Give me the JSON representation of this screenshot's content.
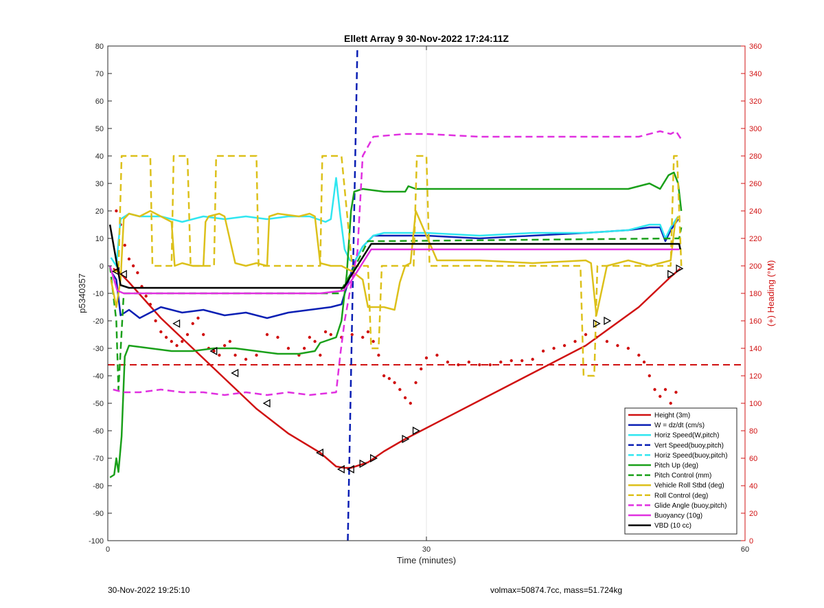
{
  "chart_data": {
    "type": "line",
    "title": "Ellett Array 9 30-Nov-2022 17:24:11Z",
    "xlabel": "Time (minutes)",
    "ylabel": "p5340357",
    "y2label": "(+) Heading (°M)",
    "xlim": [
      0,
      60
    ],
    "ylim": [
      -100,
      80
    ],
    "y2lim": [
      0,
      360
    ],
    "x_ticks": [
      0,
      30,
      60
    ],
    "y_ticks": [
      -100,
      -90,
      -80,
      -70,
      -60,
      -50,
      -40,
      -30,
      -20,
      -10,
      0,
      10,
      20,
      30,
      40,
      50,
      60,
      70,
      80
    ],
    "y2_ticks": [
      0,
      20,
      40,
      60,
      80,
      100,
      120,
      140,
      160,
      180,
      200,
      220,
      240,
      260,
      280,
      300,
      320,
      340,
      360
    ],
    "grid": "x-only",
    "legend_position": "bottom-right",
    "series": [
      {
        "name": "Height (3m)",
        "color": "#d01010",
        "style": "solid",
        "axis": "left",
        "x": [
          0.5,
          1,
          2,
          5,
          8,
          11,
          14,
          17,
          20,
          21.5,
          22.3,
          22.9,
          24.5,
          26,
          28,
          30,
          35,
          40,
          45,
          50,
          53,
          53.9
        ],
        "y": [
          -1,
          -2,
          -6,
          -19,
          -30,
          -41,
          -52,
          -61,
          -68,
          -73,
          -73.5,
          -73.5,
          -71.5,
          -67.5,
          -63,
          -59,
          -49,
          -39,
          -29,
          -15,
          -4,
          -1
        ]
      },
      {
        "name": "W = dz/dt (cm/s)",
        "color": "#0a1fb4",
        "style": "solid",
        "axis": "left",
        "x": [
          0.3,
          0.8,
          1.2,
          2,
          3,
          5,
          7,
          9,
          11,
          13,
          15,
          17,
          19,
          21,
          22,
          22.7,
          23.3,
          24,
          25,
          26,
          28,
          30,
          35,
          40,
          45,
          49,
          51,
          52,
          52.5,
          53,
          53.7
        ],
        "y": [
          -2,
          -5,
          -18,
          -16,
          -19,
          -15,
          -17,
          -16,
          -18,
          -17,
          -19,
          -17,
          -16,
          -15,
          -14,
          -5,
          2,
          7,
          11,
          11,
          11,
          11,
          10,
          11,
          12,
          13,
          14,
          14,
          9,
          13,
          17
        ]
      },
      {
        "name": "Horiz Speed(W,pitch)",
        "color": "#30e6f0",
        "style": "solid",
        "axis": "left",
        "x": [
          0.3,
          0.8,
          1.2,
          2,
          3,
          5,
          7,
          9,
          11,
          13,
          15,
          17,
          19,
          20.5,
          21,
          21.5,
          21.9,
          22.3,
          22.8,
          23.3,
          24,
          25,
          26,
          28,
          30,
          35,
          40,
          45,
          49,
          51,
          52,
          52.5,
          53,
          53.7
        ],
        "y": [
          3,
          0,
          17,
          19,
          18,
          18,
          16,
          18,
          17,
          18,
          17,
          18,
          18,
          16,
          17,
          32,
          18,
          6,
          2,
          2,
          7,
          11,
          12,
          12,
          12,
          11,
          12,
          12,
          13,
          15,
          15,
          10,
          14,
          18
        ]
      },
      {
        "name": "Vert Speed(buoy,pitch)",
        "color": "#0a1fb4",
        "style": "dashed",
        "axis": "left",
        "x": [
          22.6,
          23.5
        ],
        "y": [
          -100,
          80
        ]
      },
      {
        "name": "Horiz Speed(buoy,pitch)",
        "color": "#30e6f0",
        "style": "dashed",
        "axis": "left",
        "x": [],
        "y": []
      },
      {
        "name": "Pitch Up (deg)",
        "color": "#1aa01a",
        "style": "solid",
        "axis": "left",
        "x": [
          0.2,
          0.6,
          0.8,
          1,
          1.3,
          1.6,
          2,
          4,
          6,
          8,
          10,
          12,
          14,
          16,
          18,
          19.5,
          20,
          21.5,
          22,
          22.5,
          22.9,
          23.2,
          24,
          26,
          28,
          28.3,
          29,
          30,
          35,
          40,
          45,
          49,
          51,
          52,
          52.8,
          53.3,
          53.7,
          54
        ],
        "y": [
          -77,
          -76,
          -70,
          -75,
          -62,
          -33,
          -29,
          -30,
          -31,
          -31,
          -30,
          -30,
          -31,
          -32,
          -32,
          -31,
          -28,
          -26,
          -20,
          -3,
          20,
          27,
          28,
          27,
          27,
          29,
          28,
          28,
          28,
          28,
          28,
          28,
          30,
          28,
          33,
          34,
          30,
          20
        ]
      },
      {
        "name": "Pitch Control (mm)",
        "color": "#1aa01a",
        "style": "dashed",
        "axis": "left",
        "x": [
          0.2,
          0.8,
          1,
          1.5,
          2,
          20,
          21.8,
          23.3,
          24.5,
          26,
          53.5,
          53.8,
          54
        ],
        "y": [
          0,
          -20,
          -45,
          -10,
          -10,
          -10,
          -10,
          0,
          9,
          9,
          10,
          10,
          14
        ]
      },
      {
        "name": "Vehicle Roll Stbd (deg)",
        "color": "#dcc01a",
        "style": "solid",
        "axis": "left",
        "x": [
          0.3,
          0.8,
          1.2,
          1.5,
          2,
          3,
          4,
          5,
          6,
          6.3,
          7,
          8,
          9,
          9.2,
          9.5,
          10.5,
          11,
          12,
          13,
          14,
          15,
          15.2,
          16,
          18,
          19,
          19.5,
          20,
          21,
          22,
          22.5,
          23,
          24,
          24.5,
          25,
          26,
          27,
          27.5,
          28,
          28.5,
          29,
          31,
          35,
          40,
          45,
          45.5,
          46,
          47,
          49,
          50,
          51,
          52,
          53,
          53.4,
          53.7
        ],
        "y": [
          -5,
          -15,
          -5,
          17,
          19,
          18,
          20,
          18,
          16,
          0,
          1,
          0,
          0,
          16,
          18,
          19,
          18,
          1,
          0,
          1,
          0,
          18,
          19,
          18,
          19,
          18,
          1,
          0,
          0,
          -1,
          -2,
          -5,
          -15,
          -15,
          -15,
          -16,
          -6,
          0,
          1,
          20,
          2,
          2,
          1,
          2,
          1,
          -18,
          0,
          2,
          1,
          0,
          1,
          2,
          15,
          18
        ]
      },
      {
        "name": "Roll Control (deg)",
        "color": "#dcc01a",
        "style": "dashed",
        "axis": "left",
        "x": [
          0.3,
          1,
          1.3,
          4,
          4.2,
          6,
          6.2,
          7.5,
          7.8,
          10,
          10.2,
          14,
          14.2,
          20,
          20.2,
          22,
          23,
          24.5,
          24.8,
          25.5,
          25.8,
          28.8,
          29.1,
          30,
          30.3,
          44.5,
          44.8,
          45.8,
          46.1,
          53,
          53.3,
          53.6,
          54
        ],
        "y": [
          -2,
          -2,
          40,
          40,
          0,
          0,
          40,
          40,
          0,
          0,
          40,
          40,
          0,
          0,
          40,
          40,
          0,
          0,
          -30,
          -30,
          0,
          0,
          40,
          40,
          0,
          0,
          -40,
          -40,
          0,
          0,
          40,
          40,
          0
        ]
      },
      {
        "name": "Glide Angle (buoy,pitch)",
        "color": "#e030e0",
        "style": "dashed",
        "axis": "left",
        "x": [
          0.5,
          1.5,
          3,
          5,
          7,
          9,
          11,
          13,
          15,
          17,
          19,
          21.5,
          21.9,
          22.3,
          23,
          23.5,
          24,
          25,
          28,
          30,
          35,
          40,
          45,
          50,
          52,
          53,
          53.5,
          54
        ],
        "y": [
          -45,
          -46,
          -46,
          -45,
          -46,
          -46,
          -47,
          -46,
          -47,
          -46,
          -47,
          -46,
          -32,
          -20,
          -5,
          5,
          40,
          47,
          48,
          48,
          47,
          47,
          47,
          47,
          49,
          48,
          49,
          46
        ]
      },
      {
        "name": "Buoyancy (10g)",
        "color": "#e030e0",
        "style": "solid",
        "axis": "left",
        "x": [
          0.2,
          0.9,
          1.5,
          20,
          22.2,
          23,
          24.8,
          30,
          53.8
        ],
        "y": [
          0,
          -9,
          -10,
          -10,
          -9,
          -5,
          6,
          6,
          6
        ]
      },
      {
        "name": "VBD (10 cc)",
        "color": "#000000",
        "style": "solid",
        "axis": "left",
        "x": [
          0.2,
          1.2,
          2,
          20,
          22.2,
          23,
          24.8,
          30,
          53.8,
          53.9
        ],
        "y": [
          15,
          -7,
          -8,
          -8,
          -8,
          -3,
          8,
          8,
          8,
          6
        ]
      }
    ],
    "heading_points": {
      "name": "Heading",
      "color": "#d01010",
      "axis": "right",
      "x": [
        0.8,
        1.2,
        1.6,
        2,
        2.4,
        2.8,
        3.2,
        3.6,
        4,
        4.5,
        5,
        5.5,
        6,
        6.5,
        7,
        7.5,
        8,
        8.5,
        9,
        9.5,
        10,
        10.5,
        11,
        11.5,
        12,
        13,
        14,
        15,
        16,
        17,
        18,
        18.5,
        19,
        19.5,
        20,
        20.5,
        21,
        22,
        23,
        24,
        24.5,
        25,
        25.5,
        26,
        26.5,
        27,
        27.5,
        28,
        28.5,
        29,
        29.5,
        30,
        31,
        32,
        33,
        34,
        35,
        36,
        37,
        38,
        39,
        40,
        41,
        42,
        43,
        44,
        45,
        46,
        47,
        48,
        49,
        50,
        50.5,
        51,
        51.5,
        52,
        52.5,
        53,
        53.5
      ],
      "y": [
        240,
        230,
        215,
        205,
        200,
        195,
        185,
        178,
        172,
        160,
        152,
        148,
        145,
        142,
        145,
        150,
        158,
        162,
        150,
        140,
        138,
        135,
        142,
        145,
        135,
        132,
        135,
        150,
        148,
        140,
        135,
        140,
        148,
        145,
        135,
        152,
        150,
        148,
        150,
        148,
        152,
        145,
        135,
        120,
        118,
        115,
        110,
        104,
        100,
        115,
        125,
        133,
        135,
        130,
        128,
        130,
        128,
        128,
        130,
        131,
        131,
        132,
        138,
        140,
        142,
        145,
        150,
        148,
        145,
        142,
        140,
        135,
        130,
        120,
        110,
        105,
        110,
        100,
        108
      ]
    },
    "height_reference": {
      "axis": "left",
      "y": -36,
      "color": "#d01010",
      "style": "dashed"
    },
    "markers": {
      "series": "Height (3m)",
      "x": [
        0.8,
        1.5,
        6.5,
        10,
        12,
        15,
        20,
        22,
        22.9,
        24,
        25,
        28,
        29,
        46,
        47,
        53,
        53.8
      ],
      "y": [
        -2,
        -3,
        -21,
        -31,
        -39,
        -50,
        -68,
        -74,
        -74,
        -72,
        -70,
        -63,
        -60,
        -21,
        -20,
        -3,
        -1
      ]
    }
  },
  "footer": {
    "left": "30-Nov-2022 19:25:10",
    "right": "volmax=50874.7cc, mass=51.724kg"
  }
}
